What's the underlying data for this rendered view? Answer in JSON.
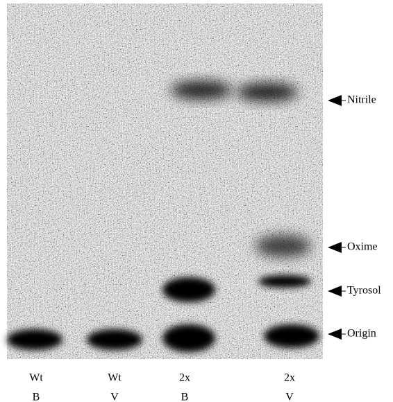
{
  "bands": [
    {
      "label": "Nitrile"
    },
    {
      "label": "Oxime"
    },
    {
      "label": "Tyrosol"
    },
    {
      "label": "Origin"
    }
  ],
  "lanes": [
    {
      "line1": "Wt",
      "line2": "B"
    },
    {
      "line1": "Wt",
      "line2": "V"
    },
    {
      "line1": "2x",
      "line2": "B"
    },
    {
      "line1": "2x",
      "line2": "V"
    }
  ]
}
